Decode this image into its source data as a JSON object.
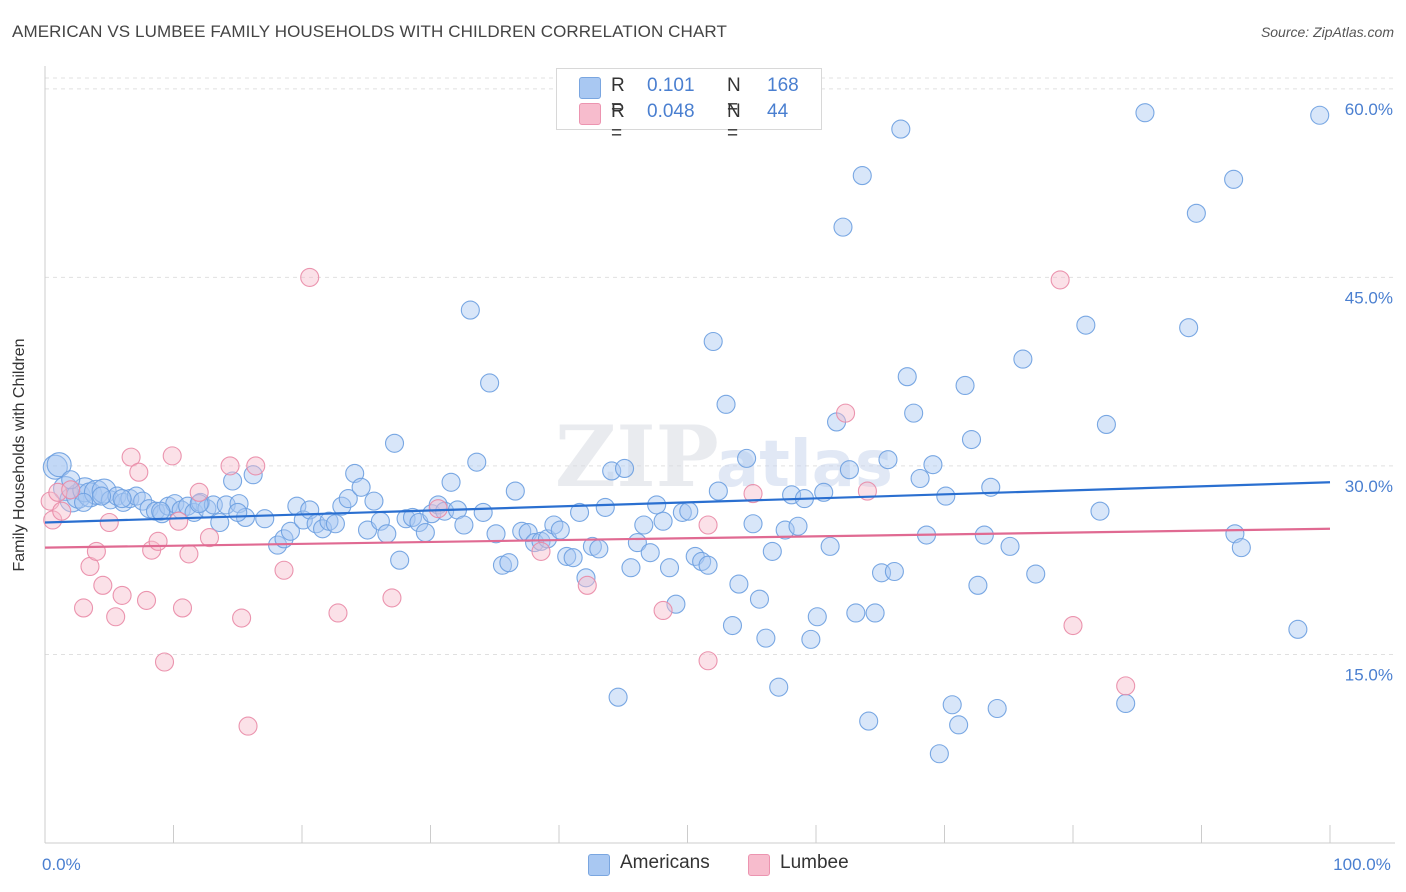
{
  "title": "AMERICAN VS LUMBEE FAMILY HOUSEHOLDS WITH CHILDREN CORRELATION CHART",
  "source": "Source: ZipAtlas.com",
  "watermark": "ZIPatlas",
  "legend": {
    "rows": [
      {
        "r_label": "R =",
        "r_value": "0.101",
        "n_label": "N =",
        "n_value": "168",
        "color": "#a9c8f2"
      },
      {
        "r_label": "R =",
        "r_value": "0.048",
        "n_label": "N =",
        "n_value": "44",
        "color": "#f7bccd"
      }
    ]
  },
  "bottom_legend": [
    {
      "label": "Americans",
      "color": "#a9c8f2"
    },
    {
      "label": "Lumbee",
      "color": "#f7bccd"
    }
  ],
  "chart_data": {
    "type": "scatter",
    "ylabel": "Family Households with Children",
    "xlim": [
      0,
      100
    ],
    "ylim": [
      0,
      61.5
    ],
    "x_tick_labels": [
      {
        "value": 0,
        "label": "0.0%"
      },
      {
        "value": 100,
        "label": "100.0%"
      }
    ],
    "y_tick_labels": [
      {
        "value": 15,
        "label": "15.0%"
      },
      {
        "value": 30,
        "label": "30.0%"
      },
      {
        "value": 45,
        "label": "45.0%"
      },
      {
        "value": 60,
        "label": "60.0%"
      }
    ],
    "grid": true,
    "legend_position": "top-center",
    "series": [
      {
        "name": "Americans",
        "color": "#6b9fe0",
        "fill": "#a9c8f2",
        "trend": {
          "x": [
            0,
            100
          ],
          "y": [
            25.5,
            28.7
          ],
          "color": "#2a6fd0"
        },
        "points": [
          [
            0.8,
            29.9
          ],
          [
            1.1,
            30.1
          ],
          [
            1.6,
            28.2
          ],
          [
            2.1,
            27.3
          ],
          [
            2.6,
            27.6
          ],
          [
            3.1,
            28.1
          ],
          [
            3.5,
            27.7
          ],
          [
            4.0,
            27.9
          ],
          [
            4.6,
            28.0
          ],
          [
            5.1,
            27.3
          ],
          [
            5.6,
            27.6
          ],
          [
            6.1,
            27.1
          ],
          [
            6.6,
            27.4
          ],
          [
            7.1,
            27.6
          ],
          [
            7.6,
            27.2
          ],
          [
            8.1,
            26.6
          ],
          [
            8.6,
            26.4
          ],
          [
            9.1,
            26.2
          ],
          [
            9.6,
            26.8
          ],
          [
            10.1,
            27.0
          ],
          [
            10.6,
            26.5
          ],
          [
            11.1,
            26.8
          ],
          [
            11.6,
            26.3
          ],
          [
            12.1,
            27.1
          ],
          [
            12.6,
            26.6
          ],
          [
            13.1,
            26.9
          ],
          [
            13.6,
            25.5
          ],
          [
            14.1,
            26.9
          ],
          [
            14.6,
            28.8
          ],
          [
            15.1,
            27.0
          ],
          [
            15.6,
            25.9
          ],
          [
            16.2,
            29.3
          ],
          [
            17.1,
            25.8
          ],
          [
            18.1,
            23.7
          ],
          [
            18.6,
            24.2
          ],
          [
            19.1,
            24.8
          ],
          [
            19.6,
            26.8
          ],
          [
            20.1,
            25.7
          ],
          [
            20.6,
            26.5
          ],
          [
            21.1,
            25.4
          ],
          [
            21.6,
            25.0
          ],
          [
            22.1,
            25.6
          ],
          [
            22.6,
            25.4
          ],
          [
            23.1,
            26.8
          ],
          [
            23.6,
            27.4
          ],
          [
            24.1,
            29.4
          ],
          [
            24.6,
            28.3
          ],
          [
            25.1,
            24.9
          ],
          [
            25.6,
            27.2
          ],
          [
            26.1,
            25.6
          ],
          [
            26.6,
            24.6
          ],
          [
            27.2,
            31.8
          ],
          [
            27.6,
            22.5
          ],
          [
            28.1,
            25.8
          ],
          [
            28.6,
            25.9
          ],
          [
            29.1,
            25.5
          ],
          [
            29.6,
            24.7
          ],
          [
            30.1,
            26.2
          ],
          [
            30.6,
            26.9
          ],
          [
            31.1,
            26.4
          ],
          [
            31.6,
            28.7
          ],
          [
            32.1,
            26.5
          ],
          [
            32.6,
            25.3
          ],
          [
            33.1,
            42.4
          ],
          [
            33.6,
            30.3
          ],
          [
            34.1,
            26.3
          ],
          [
            34.6,
            36.6
          ],
          [
            35.1,
            24.6
          ],
          [
            35.6,
            22.1
          ],
          [
            36.1,
            22.3
          ],
          [
            36.6,
            28.0
          ],
          [
            37.1,
            24.8
          ],
          [
            37.6,
            24.7
          ],
          [
            38.1,
            23.9
          ],
          [
            38.6,
            24.0
          ],
          [
            39.1,
            24.2
          ],
          [
            39.6,
            25.3
          ],
          [
            40.1,
            24.9
          ],
          [
            40.6,
            22.8
          ],
          [
            41.1,
            22.7
          ],
          [
            41.6,
            26.3
          ],
          [
            42.1,
            21.1
          ],
          [
            42.6,
            23.6
          ],
          [
            43.1,
            23.4
          ],
          [
            43.6,
            26.7
          ],
          [
            44.1,
            29.6
          ],
          [
            44.6,
            11.6
          ],
          [
            45.1,
            29.8
          ],
          [
            45.6,
            21.9
          ],
          [
            46.1,
            23.9
          ],
          [
            46.6,
            25.3
          ],
          [
            47.1,
            23.1
          ],
          [
            47.6,
            26.9
          ],
          [
            48.1,
            25.6
          ],
          [
            48.6,
            21.9
          ],
          [
            49.1,
            19.0
          ],
          [
            49.6,
            26.3
          ],
          [
            50.1,
            26.4
          ],
          [
            50.6,
            22.8
          ],
          [
            51.1,
            22.4
          ],
          [
            51.6,
            22.1
          ],
          [
            52.0,
            39.9
          ],
          [
            52.4,
            28.0
          ],
          [
            53.0,
            34.9
          ],
          [
            53.5,
            17.3
          ],
          [
            54.0,
            20.6
          ],
          [
            54.6,
            30.6
          ],
          [
            55.1,
            25.4
          ],
          [
            55.6,
            19.4
          ],
          [
            56.1,
            16.3
          ],
          [
            56.6,
            23.2
          ],
          [
            57.1,
            12.4
          ],
          [
            57.6,
            24.9
          ],
          [
            58.1,
            27.7
          ],
          [
            58.6,
            25.2
          ],
          [
            59.1,
            27.4
          ],
          [
            59.6,
            16.2
          ],
          [
            60.1,
            18.0
          ],
          [
            60.6,
            27.9
          ],
          [
            61.1,
            23.6
          ],
          [
            61.6,
            33.5
          ],
          [
            62.1,
            49.0
          ],
          [
            62.6,
            29.7
          ],
          [
            63.1,
            18.3
          ],
          [
            63.6,
            53.1
          ],
          [
            64.1,
            9.7
          ],
          [
            64.6,
            18.3
          ],
          [
            65.1,
            21.5
          ],
          [
            65.6,
            30.5
          ],
          [
            66.1,
            21.6
          ],
          [
            66.6,
            56.8
          ],
          [
            67.1,
            37.1
          ],
          [
            67.6,
            34.2
          ],
          [
            68.1,
            29.0
          ],
          [
            68.6,
            24.5
          ],
          [
            69.1,
            30.1
          ],
          [
            69.6,
            7.1
          ],
          [
            70.1,
            27.6
          ],
          [
            70.6,
            11.0
          ],
          [
            71.1,
            9.4
          ],
          [
            71.6,
            36.4
          ],
          [
            72.1,
            32.1
          ],
          [
            72.6,
            20.5
          ],
          [
            73.1,
            24.5
          ],
          [
            73.6,
            28.3
          ],
          [
            74.1,
            10.7
          ],
          [
            75.1,
            23.6
          ],
          [
            76.1,
            38.5
          ],
          [
            77.1,
            21.4
          ],
          [
            81.0,
            41.2
          ],
          [
            82.1,
            26.4
          ],
          [
            82.6,
            33.3
          ],
          [
            84.1,
            11.1
          ],
          [
            85.6,
            58.1
          ],
          [
            89.0,
            41.0
          ],
          [
            89.6,
            50.1
          ],
          [
            92.5,
            52.8
          ],
          [
            92.6,
            24.6
          ],
          [
            93.1,
            23.5
          ],
          [
            97.5,
            17.0
          ],
          [
            99.2,
            57.9
          ],
          [
            3.0,
            27.1
          ],
          [
            2.0,
            28.9
          ],
          [
            6.0,
            27.4
          ],
          [
            4.4,
            27.6
          ],
          [
            9.0,
            26.4
          ],
          [
            12.0,
            27.0
          ],
          [
            15.0,
            26.3
          ]
        ]
      },
      {
        "name": "Lumbee",
        "color": "#e98aa6",
        "fill": "#f7bccd",
        "trend": {
          "x": [
            0,
            100
          ],
          "y": [
            23.5,
            25.0
          ],
          "color": "#e06a92"
        },
        "points": [
          [
            0.4,
            27.2
          ],
          [
            0.6,
            25.7
          ],
          [
            1.0,
            27.9
          ],
          [
            1.3,
            26.4
          ],
          [
            2.0,
            28.1
          ],
          [
            3.0,
            18.7
          ],
          [
            3.5,
            22.0
          ],
          [
            4.0,
            23.2
          ],
          [
            4.5,
            20.5
          ],
          [
            5.0,
            25.5
          ],
          [
            5.5,
            18.0
          ],
          [
            6.0,
            19.7
          ],
          [
            6.7,
            30.7
          ],
          [
            7.3,
            29.5
          ],
          [
            7.9,
            19.3
          ],
          [
            8.3,
            23.3
          ],
          [
            8.8,
            24.0
          ],
          [
            9.3,
            14.4
          ],
          [
            9.9,
            30.8
          ],
          [
            10.4,
            25.6
          ],
          [
            10.7,
            18.7
          ],
          [
            11.2,
            23.0
          ],
          [
            12.0,
            27.9
          ],
          [
            12.8,
            24.3
          ],
          [
            14.4,
            30.0
          ],
          [
            15.3,
            17.9
          ],
          [
            15.8,
            9.3
          ],
          [
            16.4,
            30.0
          ],
          [
            18.6,
            21.7
          ],
          [
            20.6,
            45.0
          ],
          [
            22.8,
            18.3
          ],
          [
            27.0,
            19.5
          ],
          [
            30.6,
            26.6
          ],
          [
            38.6,
            23.2
          ],
          [
            42.2,
            20.5
          ],
          [
            48.1,
            18.5
          ],
          [
            51.6,
            25.3
          ],
          [
            51.6,
            14.5
          ],
          [
            55.1,
            27.8
          ],
          [
            62.3,
            34.2
          ],
          [
            64.0,
            28.0
          ],
          [
            79.0,
            44.8
          ],
          [
            80.0,
            17.3
          ],
          [
            84.1,
            12.5
          ]
        ]
      }
    ]
  }
}
